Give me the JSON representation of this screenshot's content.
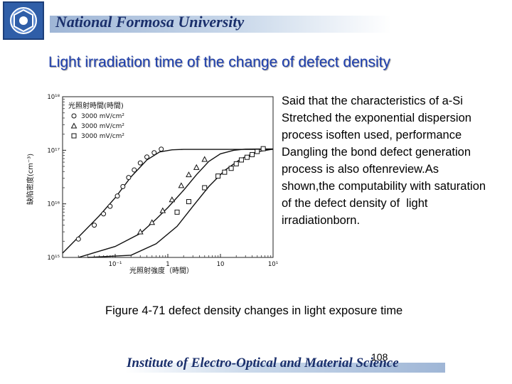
{
  "header": {
    "title": "National Formosa University"
  },
  "slide": {
    "title": "Light irradiation time of the change of defect density",
    "body": "Said that the characteristics of a-Si Stretched the exponential dispersion process isoften used, performance Dangling the bond defect generation process is also oftenreview.As shown,the computability with saturation of the defect density of  light irradiationborn.",
    "caption": "Figure 4-71 defect density changes in light exposure time"
  },
  "footer": {
    "institute": "Institute of Electro-Optical and Material Science",
    "page_number": "108"
  },
  "chart_data": {
    "type": "scatter",
    "title": "",
    "xlabel": "光照射強度（時間）",
    "ylabel": "缺陷密度(cm⁻³)",
    "x_scale": "log",
    "y_scale": "log",
    "xlim": [
      0.01,
      100
    ],
    "ylim": [
      1000000000000000.0,
      1e+18
    ],
    "x_tick_labels": [
      "10⁻¹",
      "1",
      "10",
      "10¹"
    ],
    "y_tick_labels": [
      "10¹⁸",
      "10¹⁷",
      "10¹⁶",
      "10¹⁵"
    ],
    "legend_title": "光照射時間(時間)",
    "legend_position": "top-left",
    "series": [
      {
        "name": "3000 mV/cm²",
        "marker": "circle",
        "points": [
          [
            0.02,
            2200000000000000.0
          ],
          [
            0.04,
            4000000000000000.0
          ],
          [
            0.06,
            6500000000000000.0
          ],
          [
            0.08,
            9000000000000000.0
          ],
          [
            0.11,
            1.4e+16
          ],
          [
            0.14,
            2.1e+16
          ],
          [
            0.18,
            3.1e+16
          ],
          [
            0.23,
            4.3e+16
          ],
          [
            0.3,
            5.8e+16
          ],
          [
            0.4,
            7.5e+16
          ],
          [
            0.55,
            9e+16
          ],
          [
            0.75,
            1.05e+17
          ]
        ]
      },
      {
        "name": "3000 mV/cm²",
        "marker": "triangle",
        "points": [
          [
            0.3,
            3000000000000000.0
          ],
          [
            0.5,
            4500000000000000.0
          ],
          [
            0.8,
            7500000000000000.0
          ],
          [
            1.2,
            1.2e+16
          ],
          [
            1.8,
            2.2e+16
          ],
          [
            2.5,
            3.5e+16
          ],
          [
            3.5,
            4.8e+16
          ],
          [
            5,
            6.8e+16
          ]
        ]
      },
      {
        "name": "3000 mV/cm²",
        "marker": "square",
        "points": [
          [
            1.5,
            7000000000000000.0
          ],
          [
            2.5,
            1.1e+16
          ],
          [
            5,
            2e+16
          ],
          [
            9,
            3.3e+16
          ],
          [
            12,
            3.9e+16
          ],
          [
            16,
            4.6e+16
          ],
          [
            20,
            5.6e+16
          ],
          [
            25,
            6.6e+16
          ],
          [
            32,
            7.4e+16
          ],
          [
            40,
            8.3e+16
          ],
          [
            50,
            9.5e+16
          ],
          [
            65,
            1.07e+17
          ]
        ]
      }
    ],
    "curves": [
      {
        "points": [
          [
            0.01,
            1200000000000000.0
          ],
          [
            0.02,
            2400000000000000.0
          ],
          [
            0.05,
            6000000000000000.0
          ],
          [
            0.1,
            1.3e+16
          ],
          [
            0.2,
            3.2e+16
          ],
          [
            0.4,
            6.6e+16
          ],
          [
            0.7,
            9.3e+16
          ],
          [
            1.2,
            1.02e+17
          ],
          [
            2,
            1.04e+17
          ],
          [
            100,
            1.04e+17
          ]
        ]
      },
      {
        "points": [
          [
            0.02,
            1000000000000000.0
          ],
          [
            0.1,
            1600000000000000.0
          ],
          [
            0.3,
            2800000000000000.0
          ],
          [
            0.6,
            5200000000000000.0
          ],
          [
            1,
            8500000000000000.0
          ],
          [
            2,
            1.8e+16
          ],
          [
            3.5,
            3.5e+16
          ],
          [
            6,
            6.2e+16
          ],
          [
            10,
            8.6e+16
          ],
          [
            18,
            1e+17
          ],
          [
            30,
            1.05e+17
          ],
          [
            100,
            1.06e+17
          ]
        ]
      },
      {
        "points": [
          [
            0.03,
            1000000000000000.0
          ],
          [
            0.2,
            1100000000000000.0
          ],
          [
            0.6,
            1800000000000000.0
          ],
          [
            1.5,
            3800000000000000.0
          ],
          [
            3,
            9000000000000000.0
          ],
          [
            6,
            2.1e+16
          ],
          [
            12,
            4.2e+16
          ],
          [
            25,
            7e+16
          ],
          [
            50,
            9.4e+16
          ],
          [
            100,
            1.05e+17
          ]
        ]
      }
    ]
  }
}
